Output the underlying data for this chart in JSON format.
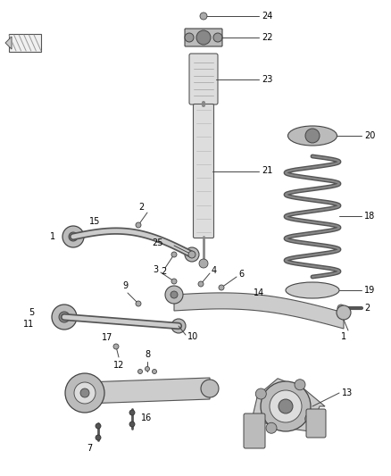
{
  "bg_color": "#ffffff",
  "line_color": "#444444",
  "dark_gray": "#555555",
  "mid_gray": "#888888",
  "light_gray": "#cccccc",
  "label_fs": 7,
  "fig_w": 4.38,
  "fig_h": 5.33,
  "dpi": 100
}
